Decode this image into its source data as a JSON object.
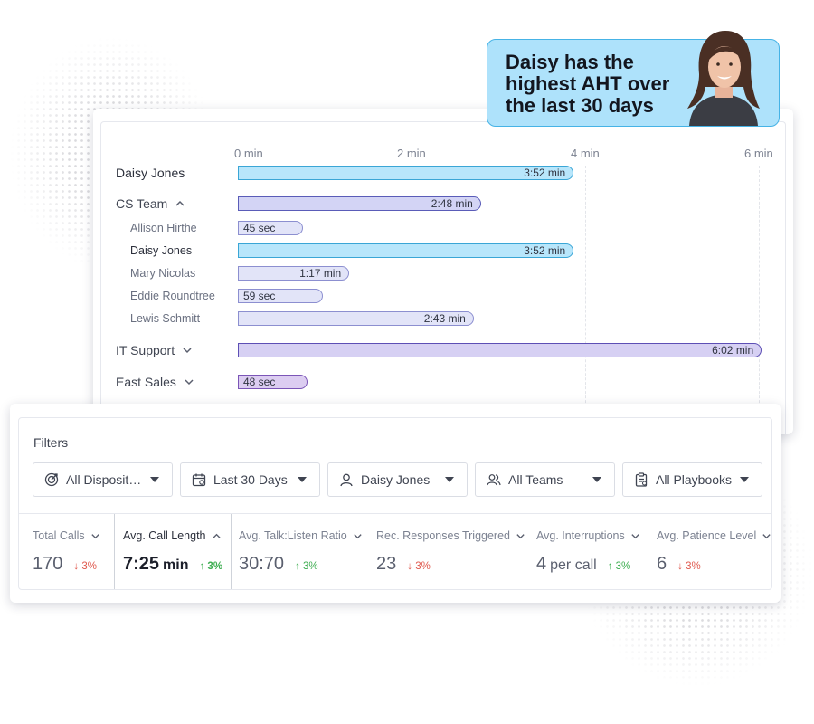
{
  "callout": {
    "text": "Daisy has the\nhighest AHT over\nthe last 30 days"
  },
  "chart_data": {
    "type": "bar",
    "orientation": "horizontal",
    "xlim": [
      0,
      6
    ],
    "x_unit": "min",
    "ticks": [
      "0 min",
      "2 min",
      "4 min",
      "6 min"
    ],
    "grid": true,
    "rows": [
      {
        "name": "Daisy Jones",
        "level": "top",
        "value": 3.867,
        "label": "3:52 min",
        "color": "#b8e6fb"
      },
      {
        "name": "CS Team",
        "level": "group",
        "expanded": true,
        "value": 2.8,
        "label": "2:48 min",
        "color": "#d3d4f5"
      },
      {
        "name": "Allison Hirthe",
        "level": "member",
        "value": 0.75,
        "label": "45 sec",
        "color": "#e2e4f8"
      },
      {
        "name": "Daisy Jones",
        "level": "member",
        "highlight": true,
        "value": 3.867,
        "label": "3:52 min",
        "color": "#b8e6fb"
      },
      {
        "name": "Mary Nicolas",
        "level": "member",
        "value": 1.283,
        "label": "1:17 min",
        "color": "#e2e4f8"
      },
      {
        "name": "Eddie Roundtree",
        "level": "member",
        "value": 0.983,
        "label": "59 sec",
        "color": "#e2e4f8"
      },
      {
        "name": "Lewis Schmitt",
        "level": "member",
        "value": 2.717,
        "label": "2:43 min",
        "color": "#e2e4f8"
      },
      {
        "name": "IT Support",
        "level": "group",
        "expanded": false,
        "value": 6.033,
        "label": "6:02 min",
        "color": "#d6d0f3"
      },
      {
        "name": "East Sales",
        "level": "group",
        "expanded": false,
        "value": 0.8,
        "label": "48 sec",
        "color": "#dccdf1"
      }
    ]
  },
  "filters": {
    "title": "Filters",
    "dropdowns": [
      {
        "label": "All Dispositi…",
        "icon": "target-icon"
      },
      {
        "label": "Last 30 Days",
        "icon": "calendar-icon"
      },
      {
        "label": "Daisy Jones",
        "icon": "user-icon"
      },
      {
        "label": "All Teams",
        "icon": "users-icon"
      },
      {
        "label": "All Playbooks",
        "icon": "clipboard-icon"
      }
    ]
  },
  "metrics": [
    {
      "label": "Total Calls",
      "value": "170",
      "unit": "",
      "delta": "↓ 3%",
      "trend": "down",
      "active": false
    },
    {
      "label": "Avg. Call Length",
      "value": "7:25",
      "unit": "min",
      "delta": "↑ 3%",
      "trend": "up",
      "active": true
    },
    {
      "label": "Avg. Talk:Listen Ratio",
      "value": "30:70",
      "unit": "",
      "delta": "↑ 3%",
      "trend": "up",
      "active": false
    },
    {
      "label": "Rec. Responses Triggered",
      "value": "23",
      "unit": "",
      "delta": "↓ 3%",
      "trend": "down",
      "active": false
    },
    {
      "label": "Avg. Interruptions",
      "value": "4",
      "unit": "per call",
      "delta": "↑ 3%",
      "trend": "up",
      "active": false
    },
    {
      "label": "Avg. Patience Level",
      "value": "6",
      "unit": "",
      "delta": "↓ 3%",
      "trend": "down",
      "active": false
    }
  ]
}
